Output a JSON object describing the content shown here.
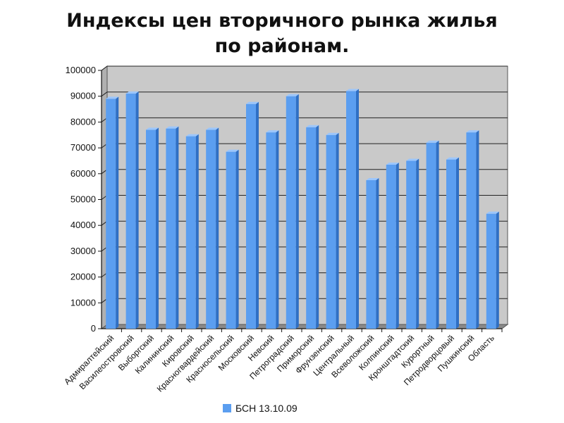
{
  "chart_data": {
    "type": "bar",
    "title_lines": [
      "Индексы цен вторичного рынка жилья",
      "по районам."
    ],
    "categories": [
      "Адмиралтейский",
      "Василеостровский",
      "Выборгский",
      "Калининский",
      "Кировский",
      "Красногвардейский",
      "Красносельский",
      "Московский",
      "Невский",
      "Петроградский",
      "Приморский",
      "Фрунзенский",
      "Центральный",
      "Всеволожский",
      "Колпинский",
      "Кронштадтский",
      "Курортный",
      "Петродворцовый",
      "Пушкинский",
      "Область"
    ],
    "series": [
      {
        "name": "БСН 13.10.09",
        "values": [
          89000,
          91000,
          77000,
          77500,
          74500,
          77000,
          68500,
          87000,
          76000,
          90000,
          78000,
          75000,
          92000,
          57500,
          63500,
          65000,
          72000,
          65500,
          76000,
          44500
        ]
      }
    ],
    "ylim": [
      0,
      100000
    ],
    "yticks": [
      0,
      10000,
      20000,
      30000,
      40000,
      50000,
      60000,
      70000,
      80000,
      90000,
      100000
    ],
    "grid": true,
    "legend_position": "bottom",
    "colors": {
      "bar_front": "#5b9ef0",
      "bar_side": "#2f6fc4",
      "bar_top": "#9cc6fb",
      "wall": "#c9c9c9",
      "floor": "#8a8a8a",
      "gridline": "#222222"
    }
  }
}
